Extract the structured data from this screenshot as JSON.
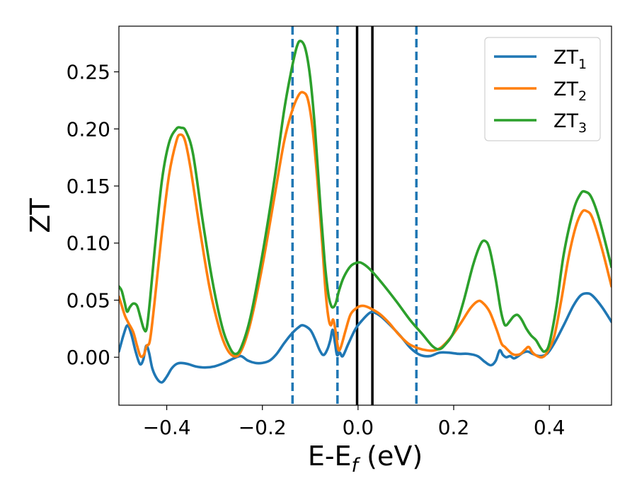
{
  "chart_data": {
    "type": "line",
    "xlabel": {
      "main": "E-E",
      "sub": "f",
      "suffix": " (eV)"
    },
    "ylabel": "ZT",
    "xlim": [
      -0.5,
      0.53
    ],
    "ylim": [
      -0.042,
      0.29
    ],
    "xticks": [
      -0.4,
      -0.2,
      0.0,
      0.2,
      0.4
    ],
    "xtick_labels": [
      "−0.4",
      "−0.2",
      "0.0",
      "0.2",
      "0.4"
    ],
    "yticks": [
      0.0,
      0.05,
      0.1,
      0.15,
      0.2,
      0.25
    ],
    "ytick_labels": [
      "0.00",
      "0.05",
      "0.10",
      "0.15",
      "0.20",
      "0.25"
    ],
    "grid": false,
    "legend_position": "top-right",
    "vlines": [
      {
        "x": -0.137,
        "style": "dashed",
        "color": "#1f77b4"
      },
      {
        "x": -0.043,
        "style": "dashed",
        "color": "#1f77b4"
      },
      {
        "x": 0.122,
        "style": "dashed",
        "color": "#1f77b4"
      },
      {
        "x": -0.002,
        "style": "solid",
        "color": "#000000"
      },
      {
        "x": 0.03,
        "style": "solid",
        "color": "#000000"
      }
    ],
    "series": [
      {
        "name": "ZT",
        "sub": "1",
        "color": "#1f77b4",
        "points": [
          [
            -0.5,
            0.005
          ],
          [
            -0.49,
            0.02
          ],
          [
            -0.482,
            0.028
          ],
          [
            -0.474,
            0.02
          ],
          [
            -0.465,
            0.005
          ],
          [
            -0.456,
            -0.006
          ],
          [
            -0.449,
            -0.002
          ],
          [
            -0.443,
            0.01
          ],
          [
            -0.437,
            0.004
          ],
          [
            -0.43,
            -0.01
          ],
          [
            -0.42,
            -0.019
          ],
          [
            -0.41,
            -0.022
          ],
          [
            -0.4,
            -0.017
          ],
          [
            -0.39,
            -0.01
          ],
          [
            -0.38,
            -0.006
          ],
          [
            -0.37,
            -0.005
          ],
          [
            -0.355,
            -0.006
          ],
          [
            -0.34,
            -0.008
          ],
          [
            -0.32,
            -0.009
          ],
          [
            -0.3,
            -0.008
          ],
          [
            -0.28,
            -0.005
          ],
          [
            -0.26,
            -0.001
          ],
          [
            -0.245,
            0.001
          ],
          [
            -0.23,
            -0.003
          ],
          [
            -0.215,
            -0.005
          ],
          [
            -0.2,
            -0.005
          ],
          [
            -0.185,
            -0.003
          ],
          [
            -0.17,
            0.003
          ],
          [
            -0.155,
            0.012
          ],
          [
            -0.14,
            0.02
          ],
          [
            -0.125,
            0.026
          ],
          [
            -0.115,
            0.028
          ],
          [
            -0.1,
            0.024
          ],
          [
            -0.09,
            0.016
          ],
          [
            -0.08,
            0.006
          ],
          [
            -0.072,
            0.002
          ],
          [
            -0.064,
            0.007
          ],
          [
            -0.058,
            0.015
          ],
          [
            -0.053,
            0.024
          ],
          [
            -0.048,
            0.012
          ],
          [
            -0.044,
            0.002
          ],
          [
            -0.038,
            0.004
          ],
          [
            -0.032,
            0.001
          ],
          [
            -0.02,
            0.012
          ],
          [
            -0.005,
            0.025
          ],
          [
            0.01,
            0.033
          ],
          [
            0.025,
            0.039
          ],
          [
            0.035,
            0.039
          ],
          [
            0.05,
            0.035
          ],
          [
            0.07,
            0.027
          ],
          [
            0.09,
            0.018
          ],
          [
            0.11,
            0.008
          ],
          [
            0.13,
            0.002
          ],
          [
            0.15,
            0.001
          ],
          [
            0.17,
            0.004
          ],
          [
            0.19,
            0.004
          ],
          [
            0.21,
            0.003
          ],
          [
            0.23,
            0.003
          ],
          [
            0.25,
            0.001
          ],
          [
            0.265,
            -0.004
          ],
          [
            0.278,
            -0.007
          ],
          [
            0.288,
            -0.003
          ],
          [
            0.296,
            0.006
          ],
          [
            0.303,
            0.002
          ],
          [
            0.31,
            0.0
          ],
          [
            0.318,
            0.001
          ],
          [
            0.326,
            -0.001
          ],
          [
            0.335,
            0.001
          ],
          [
            0.345,
            0.004
          ],
          [
            0.355,
            0.005
          ],
          [
            0.365,
            0.003
          ],
          [
            0.38,
            0.001
          ],
          [
            0.395,
            0.003
          ],
          [
            0.41,
            0.012
          ],
          [
            0.43,
            0.028
          ],
          [
            0.45,
            0.045
          ],
          [
            0.465,
            0.054
          ],
          [
            0.478,
            0.056
          ],
          [
            0.49,
            0.054
          ],
          [
            0.51,
            0.044
          ],
          [
            0.53,
            0.031
          ]
        ]
      },
      {
        "name": "ZT",
        "sub": "2",
        "color": "#ff7f0e",
        "points": [
          [
            -0.5,
            0.053
          ],
          [
            -0.494,
            0.045
          ],
          [
            -0.487,
            0.036
          ],
          [
            -0.48,
            0.03
          ],
          [
            -0.47,
            0.022
          ],
          [
            -0.462,
            0.01
          ],
          [
            -0.455,
            0.001
          ],
          [
            -0.448,
            0.002
          ],
          [
            -0.442,
            0.01
          ],
          [
            -0.435,
            0.015
          ],
          [
            -0.425,
            0.05
          ],
          [
            -0.41,
            0.11
          ],
          [
            -0.395,
            0.16
          ],
          [
            -0.38,
            0.189
          ],
          [
            -0.372,
            0.195
          ],
          [
            -0.362,
            0.19
          ],
          [
            -0.35,
            0.165
          ],
          [
            -0.33,
            0.11
          ],
          [
            -0.31,
            0.06
          ],
          [
            -0.29,
            0.025
          ],
          [
            -0.275,
            0.008
          ],
          [
            -0.26,
            0.001
          ],
          [
            -0.245,
            0.005
          ],
          [
            -0.225,
            0.03
          ],
          [
            -0.2,
            0.08
          ],
          [
            -0.175,
            0.14
          ],
          [
            -0.155,
            0.188
          ],
          [
            -0.14,
            0.213
          ],
          [
            -0.125,
            0.229
          ],
          [
            -0.115,
            0.232
          ],
          [
            -0.105,
            0.226
          ],
          [
            -0.095,
            0.2
          ],
          [
            -0.085,
            0.155
          ],
          [
            -0.075,
            0.1
          ],
          [
            -0.068,
            0.058
          ],
          [
            -0.062,
            0.035
          ],
          [
            -0.057,
            0.028
          ],
          [
            -0.052,
            0.033
          ],
          [
            -0.047,
            0.023
          ],
          [
            -0.043,
            0.011
          ],
          [
            -0.04,
            0.006
          ],
          [
            -0.035,
            0.01
          ],
          [
            -0.025,
            0.025
          ],
          [
            -0.015,
            0.038
          ],
          [
            0.0,
            0.044
          ],
          [
            0.012,
            0.045
          ],
          [
            0.025,
            0.043
          ],
          [
            0.045,
            0.038
          ],
          [
            0.065,
            0.03
          ],
          [
            0.085,
            0.02
          ],
          [
            0.105,
            0.012
          ],
          [
            0.125,
            0.008
          ],
          [
            0.145,
            0.006
          ],
          [
            0.16,
            0.006
          ],
          [
            0.175,
            0.009
          ],
          [
            0.195,
            0.018
          ],
          [
            0.215,
            0.03
          ],
          [
            0.235,
            0.043
          ],
          [
            0.25,
            0.049
          ],
          [
            0.26,
            0.048
          ],
          [
            0.275,
            0.04
          ],
          [
            0.29,
            0.024
          ],
          [
            0.3,
            0.012
          ],
          [
            0.307,
            0.009
          ],
          [
            0.314,
            0.006
          ],
          [
            0.322,
            0.003
          ],
          [
            0.33,
            0.002
          ],
          [
            0.34,
            0.003
          ],
          [
            0.35,
            0.007
          ],
          [
            0.357,
            0.009
          ],
          [
            0.365,
            0.004
          ],
          [
            0.375,
            0.001
          ],
          [
            0.385,
            0.0
          ],
          [
            0.395,
            0.004
          ],
          [
            0.41,
            0.018
          ],
          [
            0.425,
            0.05
          ],
          [
            0.44,
            0.087
          ],
          [
            0.455,
            0.114
          ],
          [
            0.468,
            0.127
          ],
          [
            0.478,
            0.128
          ],
          [
            0.49,
            0.122
          ],
          [
            0.51,
            0.095
          ],
          [
            0.53,
            0.062
          ]
        ]
      },
      {
        "name": "ZT",
        "sub": "3",
        "color": "#2ca02c",
        "points": [
          [
            -0.5,
            0.062
          ],
          [
            -0.494,
            0.058
          ],
          [
            -0.488,
            0.048
          ],
          [
            -0.483,
            0.04
          ],
          [
            -0.477,
            0.044
          ],
          [
            -0.47,
            0.047
          ],
          [
            -0.462,
            0.045
          ],
          [
            -0.455,
            0.035
          ],
          [
            -0.448,
            0.025
          ],
          [
            -0.442,
            0.025
          ],
          [
            -0.435,
            0.05
          ],
          [
            -0.425,
            0.095
          ],
          [
            -0.41,
            0.155
          ],
          [
            -0.395,
            0.188
          ],
          [
            -0.38,
            0.2
          ],
          [
            -0.37,
            0.201
          ],
          [
            -0.36,
            0.198
          ],
          [
            -0.345,
            0.178
          ],
          [
            -0.325,
            0.12
          ],
          [
            -0.305,
            0.068
          ],
          [
            -0.285,
            0.028
          ],
          [
            -0.27,
            0.01
          ],
          [
            -0.258,
            0.003
          ],
          [
            -0.245,
            0.008
          ],
          [
            -0.225,
            0.035
          ],
          [
            -0.2,
            0.09
          ],
          [
            -0.175,
            0.155
          ],
          [
            -0.155,
            0.215
          ],
          [
            -0.14,
            0.25
          ],
          [
            -0.128,
            0.272
          ],
          [
            -0.12,
            0.277
          ],
          [
            -0.11,
            0.27
          ],
          [
            -0.1,
            0.245
          ],
          [
            -0.09,
            0.2
          ],
          [
            -0.08,
            0.14
          ],
          [
            -0.07,
            0.085
          ],
          [
            -0.062,
            0.055
          ],
          [
            -0.056,
            0.045
          ],
          [
            -0.051,
            0.044
          ],
          [
            -0.046,
            0.048
          ],
          [
            -0.04,
            0.058
          ],
          [
            -0.03,
            0.07
          ],
          [
            -0.015,
            0.08
          ],
          [
            0.0,
            0.083
          ],
          [
            0.01,
            0.082
          ],
          [
            0.025,
            0.077
          ],
          [
            0.05,
            0.065
          ],
          [
            0.08,
            0.049
          ],
          [
            0.11,
            0.032
          ],
          [
            0.135,
            0.02
          ],
          [
            0.155,
            0.01
          ],
          [
            0.168,
            0.007
          ],
          [
            0.18,
            0.01
          ],
          [
            0.2,
            0.022
          ],
          [
            0.22,
            0.048
          ],
          [
            0.24,
            0.08
          ],
          [
            0.255,
            0.098
          ],
          [
            0.265,
            0.102
          ],
          [
            0.275,
            0.095
          ],
          [
            0.288,
            0.068
          ],
          [
            0.298,
            0.042
          ],
          [
            0.305,
            0.03
          ],
          [
            0.31,
            0.028
          ],
          [
            0.318,
            0.032
          ],
          [
            0.326,
            0.036
          ],
          [
            0.334,
            0.037
          ],
          [
            0.342,
            0.033
          ],
          [
            0.352,
            0.025
          ],
          [
            0.362,
            0.019
          ],
          [
            0.372,
            0.015
          ],
          [
            0.382,
            0.008
          ],
          [
            0.39,
            0.005
          ],
          [
            0.4,
            0.012
          ],
          [
            0.415,
            0.045
          ],
          [
            0.43,
            0.09
          ],
          [
            0.45,
            0.128
          ],
          [
            0.465,
            0.143
          ],
          [
            0.475,
            0.145
          ],
          [
            0.488,
            0.14
          ],
          [
            0.505,
            0.12
          ],
          [
            0.53,
            0.079
          ]
        ]
      }
    ]
  }
}
